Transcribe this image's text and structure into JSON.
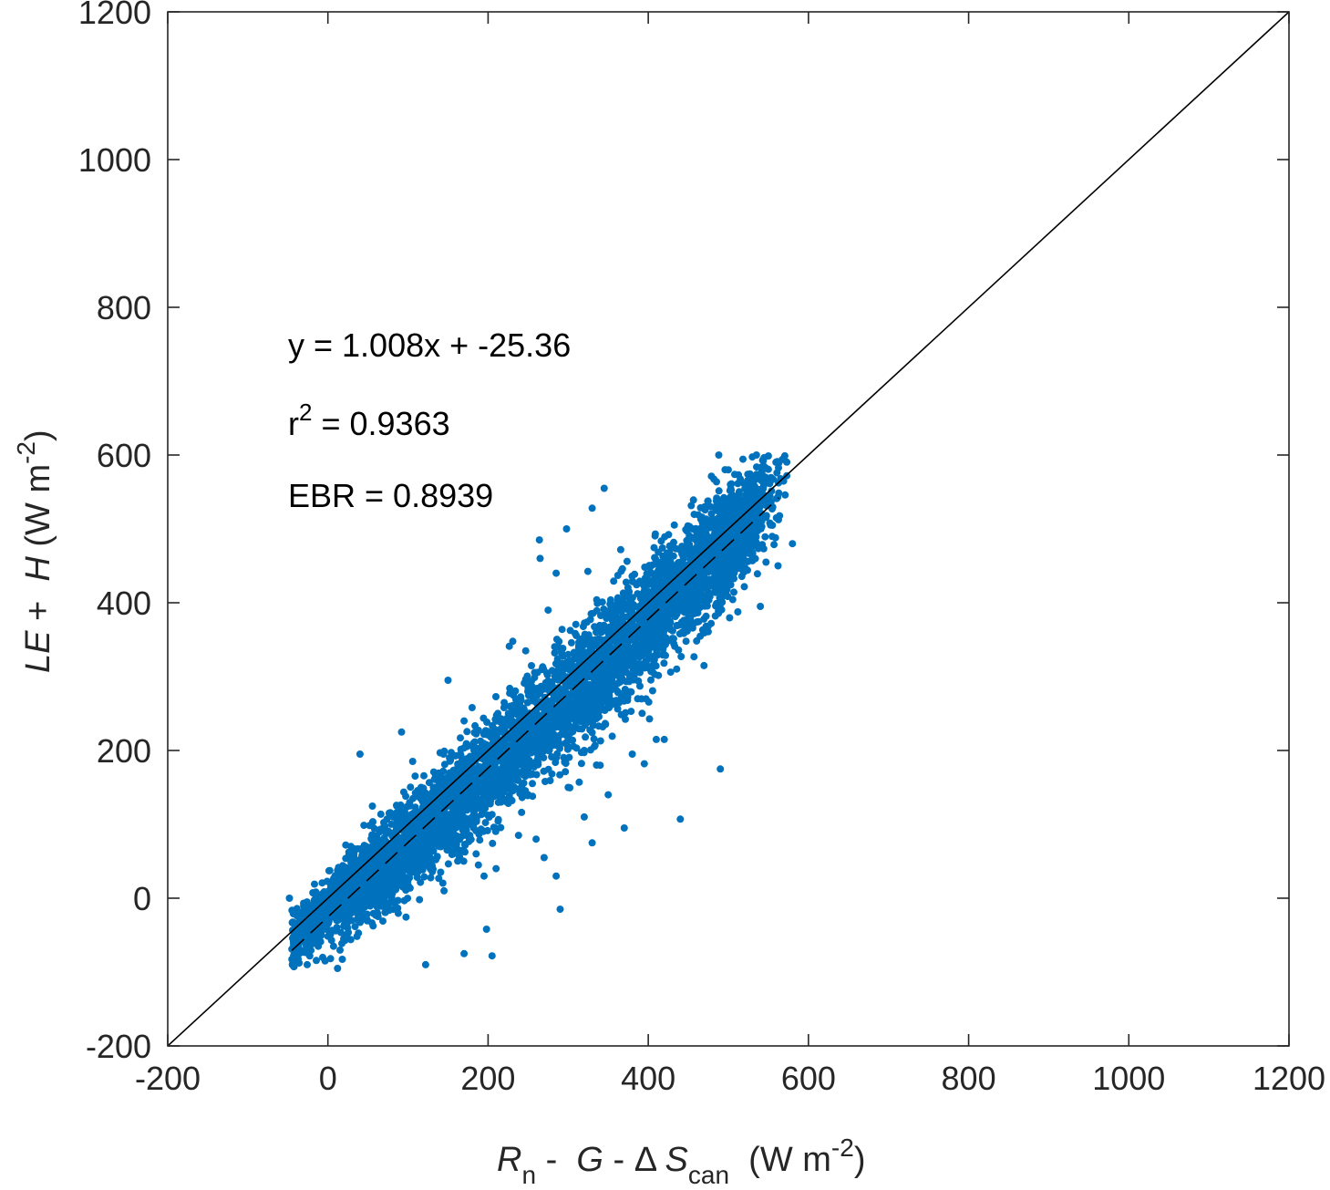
{
  "chart_data": {
    "type": "scatter",
    "xlim": [
      -200,
      1200
    ],
    "ylim": [
      -200,
      1200
    ],
    "x_ticks": [
      -200,
      0,
      200,
      400,
      600,
      800,
      1000,
      1200
    ],
    "y_ticks": [
      -200,
      0,
      200,
      400,
      600,
      800,
      1000,
      1200
    ],
    "x_tick_labels": [
      "-200",
      "0",
      "200",
      "400",
      "600",
      "800",
      "1000",
      "1200"
    ],
    "y_tick_labels": [
      "-200",
      "0",
      "200",
      "400",
      "600",
      "800",
      "1000",
      "1200"
    ],
    "xlabel": {
      "r": "R",
      "r_sub": "n",
      "minus1": " -  ",
      "g": "G",
      "minus2": " - ",
      "delta": "Δ ",
      "s": "S",
      "s_sub": "can",
      "units": "  (W m",
      "units_sup": "-2",
      "units_close": ")"
    },
    "ylabel": {
      "le": "LE",
      "plus": " +  ",
      "h": "H",
      "units": " (W m",
      "units_sup": "-2",
      "units_close": ")"
    },
    "annotations": {
      "equation": "y = 1.008x + -25.36",
      "r2_label": "r",
      "r2_sup": "2",
      "r2_value": " = 0.9363",
      "ebr": "EBR = 0.8939"
    },
    "one_to_one_line": {
      "x": [
        -200,
        1200
      ],
      "y": [
        -200,
        1200
      ],
      "style": "solid"
    },
    "fit_line": {
      "slope": 1.008,
      "intercept": -25.36,
      "x_range": [
        -45,
        563
      ],
      "style": "dashed"
    },
    "scatter_series": {
      "color": "#0072bd",
      "cluster": [
        {
          "x": 0,
          "y": -10,
          "sx": 30,
          "sy": 25,
          "n": 700
        },
        {
          "x": 70,
          "y": 40,
          "sx": 35,
          "sy": 40,
          "n": 700
        },
        {
          "x": 150,
          "y": 120,
          "sx": 40,
          "sy": 45,
          "n": 700
        },
        {
          "x": 230,
          "y": 200,
          "sx": 40,
          "sy": 50,
          "n": 650
        },
        {
          "x": 310,
          "y": 280,
          "sx": 40,
          "sy": 55,
          "n": 650
        },
        {
          "x": 380,
          "y": 350,
          "sx": 35,
          "sy": 55,
          "n": 650
        },
        {
          "x": 450,
          "y": 430,
          "sx": 35,
          "sy": 50,
          "n": 700
        },
        {
          "x": 510,
          "y": 500,
          "sx": 25,
          "sy": 45,
          "n": 650
        }
      ],
      "outliers": [
        [
          -48,
          0
        ],
        [
          12,
          -95
        ],
        [
          122,
          -90
        ],
        [
          170,
          -75
        ],
        [
          205,
          -78
        ],
        [
          198,
          -42
        ],
        [
          40,
          195
        ],
        [
          92,
          225
        ],
        [
          150,
          295
        ],
        [
          170,
          240
        ],
        [
          180,
          258
        ],
        [
          247,
          335
        ],
        [
          264,
          485
        ],
        [
          298,
          500
        ],
        [
          345,
          555
        ],
        [
          330,
          528
        ],
        [
          275,
          390
        ],
        [
          300,
          330
        ],
        [
          440,
          107
        ],
        [
          490,
          175
        ],
        [
          380,
          195
        ],
        [
          410,
          215
        ],
        [
          420,
          215
        ],
        [
          395,
          182
        ],
        [
          285,
          30
        ],
        [
          290,
          -15
        ],
        [
          270,
          55
        ],
        [
          260,
          80
        ],
        [
          330,
          75
        ],
        [
          370,
          95
        ],
        [
          320,
          110
        ],
        [
          300,
          150
        ],
        [
          350,
          140
        ],
        [
          540,
          395
        ],
        [
          547,
          455
        ],
        [
          580,
          480
        ],
        [
          555,
          505
        ],
        [
          560,
          515
        ],
        [
          562,
          450
        ],
        [
          488,
          600
        ],
        [
          535,
          600
        ],
        [
          500,
          580
        ],
        [
          160,
          75
        ],
        [
          185,
          60
        ],
        [
          210,
          40
        ],
        [
          195,
          30
        ],
        [
          145,
          10
        ],
        [
          238,
          85
        ],
        [
          250,
          140
        ],
        [
          300,
          220
        ],
        [
          320,
          200
        ],
        [
          340,
          180
        ],
        [
          265,
          460
        ],
        [
          285,
          440
        ]
      ],
      "seed": 7
    }
  }
}
